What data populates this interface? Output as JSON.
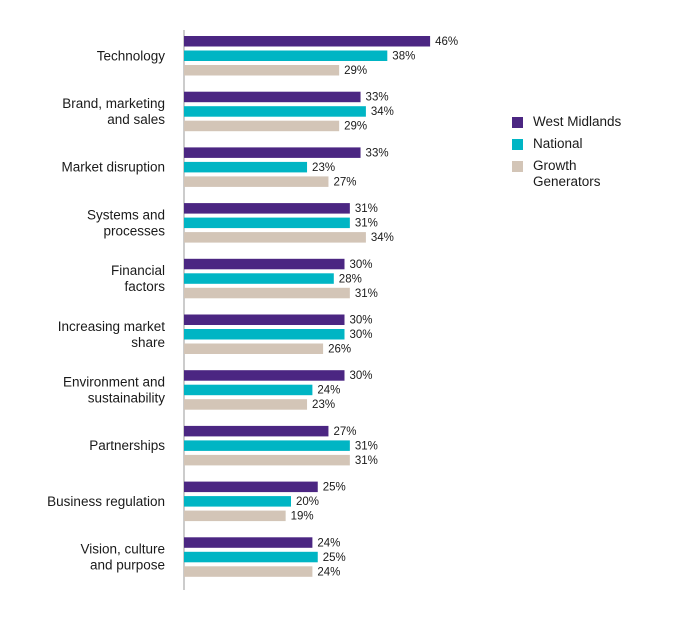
{
  "chart_data": {
    "type": "bar",
    "orientation": "horizontal",
    "categories": [
      [
        "Technology"
      ],
      [
        "Brand, marketing",
        "and sales"
      ],
      [
        "Market disruption"
      ],
      [
        "Systems and",
        "processes"
      ],
      [
        "Financial",
        "factors"
      ],
      [
        "Increasing market",
        "share"
      ],
      [
        "Environment and",
        "sustainability"
      ],
      [
        "Partnerships"
      ],
      [
        "Business regulation"
      ],
      [
        "Vision, culture",
        "and purpose"
      ]
    ],
    "series": [
      {
        "name": "West Midlands",
        "color": "#4b2682",
        "values": [
          46,
          33,
          33,
          31,
          30,
          30,
          30,
          27,
          25,
          24
        ]
      },
      {
        "name": "National",
        "color": "#00b5c4",
        "values": [
          38,
          34,
          23,
          31,
          28,
          30,
          24,
          31,
          20,
          25
        ]
      },
      {
        "name": "Growth Generators",
        "color": "#d3c5b7",
        "values": [
          29,
          29,
          27,
          34,
          31,
          26,
          23,
          31,
          19,
          24
        ]
      }
    ],
    "value_suffix": "%",
    "xlim": [
      0,
      50
    ],
    "grid": false,
    "legend_position": "right",
    "title": "",
    "xlabel": "",
    "ylabel": ""
  }
}
